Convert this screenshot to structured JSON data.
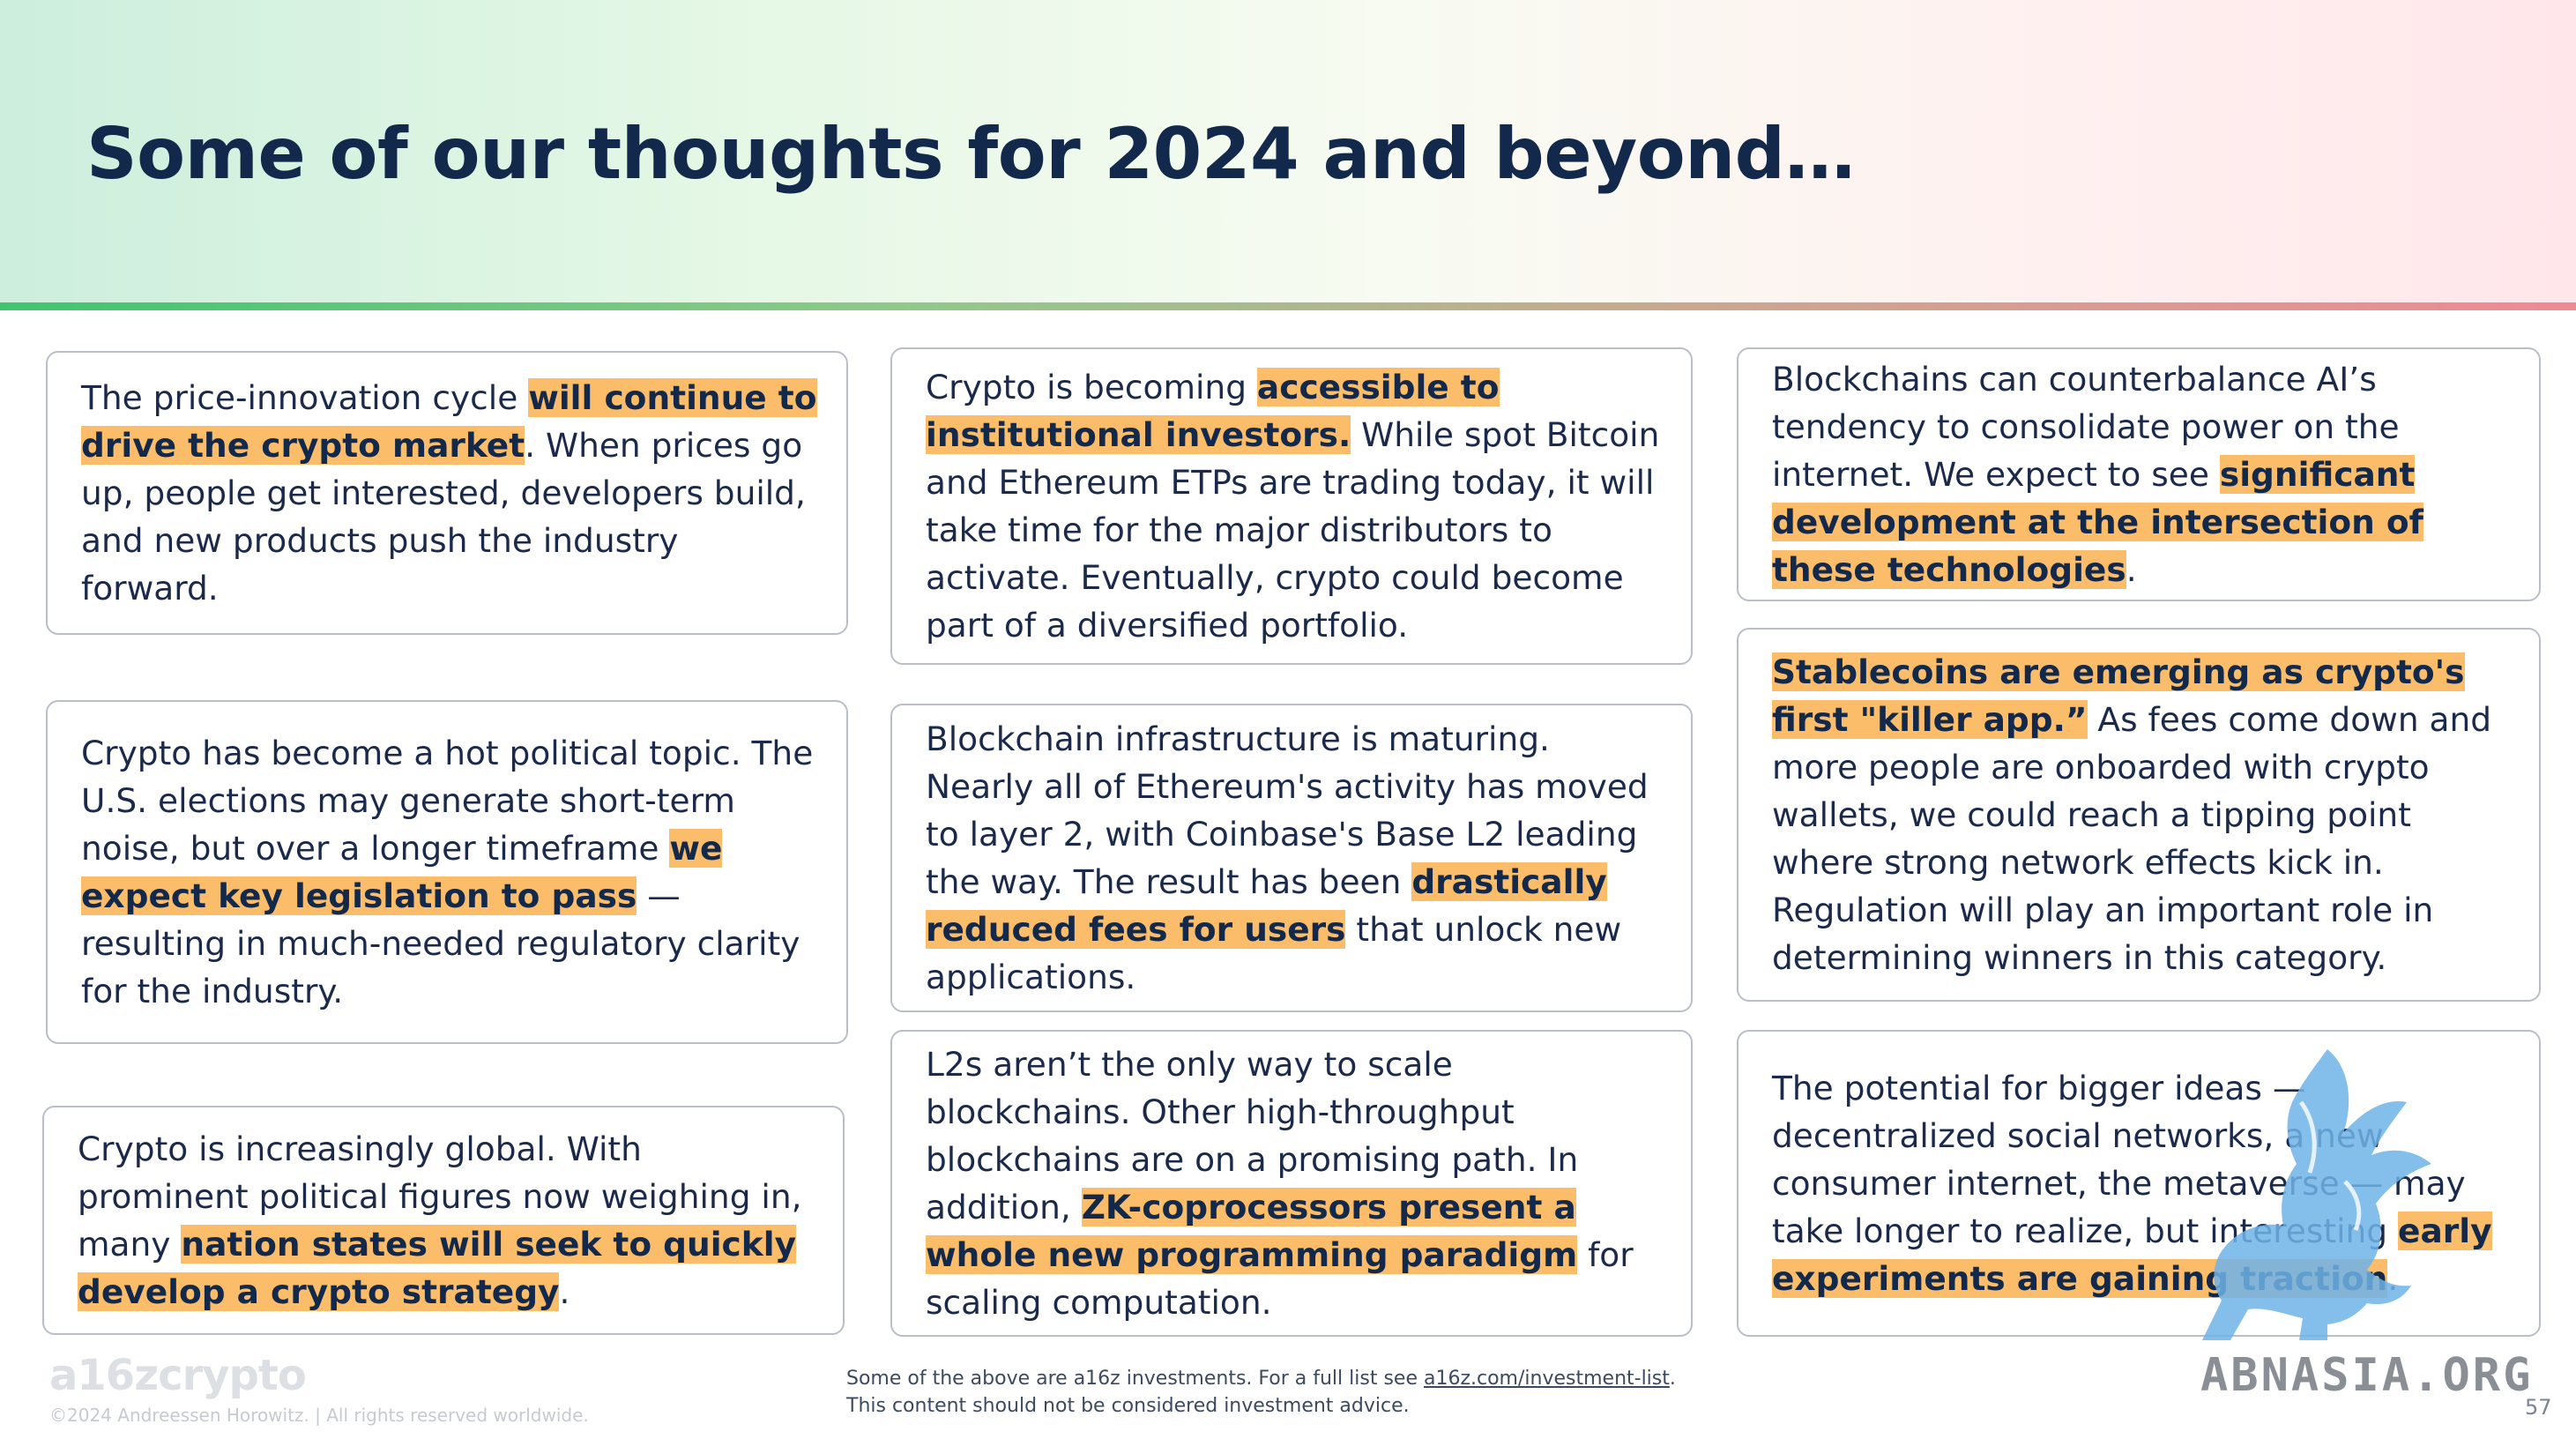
{
  "slide": {
    "title": "Some of our thoughts for 2024 and beyond…",
    "page_number": "57"
  },
  "cards": [
    {
      "id": "price-cycle",
      "segments": [
        {
          "text": "The price-innovation cycle ",
          "highlight": false
        },
        {
          "text": "will continue to drive the crypto market",
          "highlight": true
        },
        {
          "text": ". When prices go up, people get interested, developers build, and new products push the industry forward.",
          "highlight": false
        }
      ]
    },
    {
      "id": "institutional",
      "segments": [
        {
          "text": "Crypto is becoming ",
          "highlight": false
        },
        {
          "text": "accessible to institutional investors.",
          "highlight": true
        },
        {
          "text": " While spot Bitcoin and Ethereum ETPs are trading today, it will take time for the major distributors to activate. Eventually, crypto could become part of a diversified portfolio.",
          "highlight": false
        }
      ]
    },
    {
      "id": "ai-counterbalance",
      "segments": [
        {
          "text": "Blockchains can counterbalance AI’s tendency to consolidate power on the internet. We expect to see ",
          "highlight": false
        },
        {
          "text": "significant development at the intersection of these technologies",
          "highlight": true
        },
        {
          "text": ".",
          "highlight": false
        }
      ]
    },
    {
      "id": "political",
      "segments": [
        {
          "text": "Crypto has become a hot political topic. The U.S. elections may generate short-term noise, but over a longer timeframe ",
          "highlight": false
        },
        {
          "text": "we expect key legislation to pass",
          "highlight": true
        },
        {
          "text": " — resulting in much-needed regulatory clarity for the industry.",
          "highlight": false
        }
      ]
    },
    {
      "id": "infrastructure",
      "segments": [
        {
          "text": "Blockchain infrastructure is maturing. Nearly all of Ethereum's activity has moved to layer 2, with Coinbase's Base L2 leading the way. The result has been ",
          "highlight": false
        },
        {
          "text": "drastically reduced fees for users",
          "highlight": true
        },
        {
          "text": " that unlock new applications.",
          "highlight": false
        }
      ]
    },
    {
      "id": "stablecoins",
      "segments": [
        {
          "text": "Stablecoins are emerging as crypto's first \"killer app.”",
          "highlight": true
        },
        {
          "text": " As fees come down and more people are onboarded with crypto wallets, we could reach a tipping point where strong network effects kick in. Regulation will play an important role in determining winners in this category.",
          "highlight": false
        }
      ]
    },
    {
      "id": "global",
      "segments": [
        {
          "text": "Crypto is increasingly global. With prominent political figures now weighing in, many ",
          "highlight": false
        },
        {
          "text": "nation states will seek to quickly develop a crypto strategy",
          "highlight": true
        },
        {
          "text": ".",
          "highlight": false
        }
      ]
    },
    {
      "id": "l2s-scaling",
      "segments": [
        {
          "text": "L2s aren’t the only way to scale blockchains. Other high-throughput blockchains are on a promising path. In addition, ",
          "highlight": false
        },
        {
          "text": "ZK-coprocessors present a whole new programming paradigm",
          "highlight": true
        },
        {
          "text": " for scaling computation.",
          "highlight": false
        }
      ]
    },
    {
      "id": "bigger-ideas",
      "segments": [
        {
          "text": "The potential for bigger ideas — decentralized social networks, a new consumer internet, the metaverse — may take longer to realize, but interesting ",
          "highlight": false
        },
        {
          "text": "early experiments are gaining traction",
          "highlight": true
        },
        {
          "text": ".",
          "highlight": false
        }
      ]
    }
  ],
  "footer": {
    "logo": "a16zcrypto",
    "copyright": "©2024 Andreessen Horowitz. | All rights reserved worldwide.",
    "disclaimer_before": "Some of the above are a16z investments. For a full list see ",
    "disclaimer_link": "a16z.com/investment-list",
    "disclaimer_after": ". This content should not be considered investment advice."
  },
  "watermark": {
    "text": "ABNASIA.ORG",
    "icon": "griffin-icon",
    "color": "#6fb3e8"
  },
  "colors": {
    "title": "#13294b",
    "highlight": "#fbbd6a",
    "header_line_start": "#3ec66e",
    "header_line_end": "#ee8a94"
  }
}
